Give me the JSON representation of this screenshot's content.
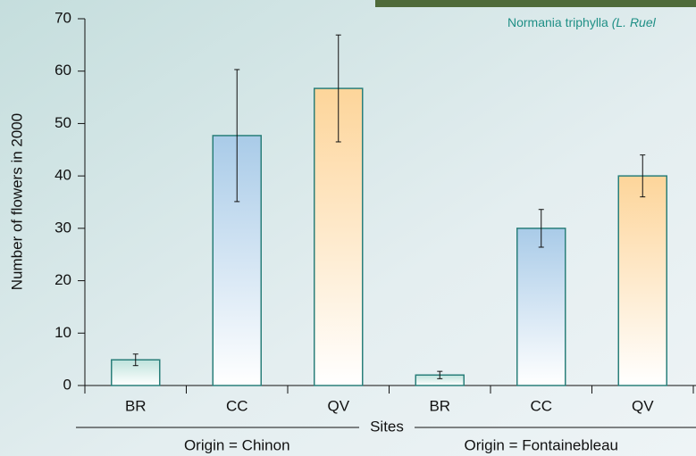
{
  "chart_data": {
    "type": "bar",
    "note": "Normania triphylla",
    "note_italic": "(L. Ruel",
    "ylabel": "Number of flowers in 2000",
    "xlabel": "Sites",
    "categories": [
      "BR",
      "CC",
      "QV",
      "BR",
      "CC",
      "QV"
    ],
    "groups": [
      "Origin = Chinon",
      "Origin = Fontainebleau"
    ],
    "values": [
      4.9,
      47.7,
      56.7,
      2.0,
      30.0,
      40.0
    ],
    "errors": [
      1.1,
      12.6,
      10.2,
      0.7,
      3.6,
      4.0
    ],
    "colors": [
      "#bfe3dc",
      "#a9cbe8",
      "#fdd59a",
      "#bfe3dc",
      "#a9cbe8",
      "#fdd59a"
    ],
    "edge_color": "#2a7f7a",
    "ylim": [
      0,
      70
    ],
    "yticks": [
      0,
      10,
      20,
      30,
      40,
      50,
      60,
      70
    ]
  }
}
